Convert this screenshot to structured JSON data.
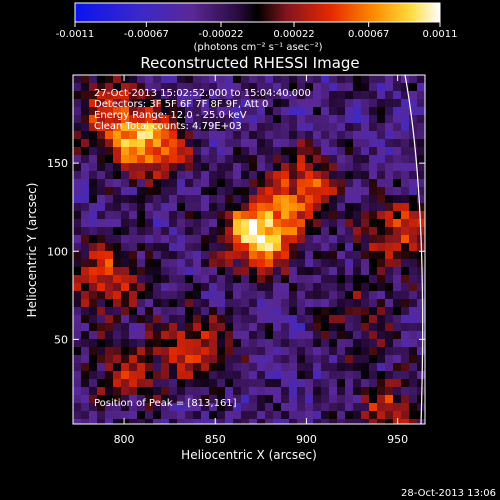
{
  "colors": {
    "background": "#000000",
    "text": "#ffffff",
    "colormap_low": "#0000ff",
    "colormap_mid": "#000000",
    "colormap_high": "#ffffff",
    "limb": "#ffffff"
  },
  "colorbar": {
    "tick_labels": [
      "-0.0011",
      "-0.00067",
      "-0.00022",
      "0.00022",
      "0.00067",
      "0.0011"
    ],
    "units_label": "(photons cm⁻² s⁻¹ asec⁻²)",
    "range": [
      -0.0011,
      0.0011
    ]
  },
  "chart_data": {
    "type": "heatmap",
    "title": "Reconstructed RHESSI Image",
    "xlabel": "Heliocentric X (arcsec)",
    "ylabel": "Heliocentric Y (arcsec)",
    "xlim": [
      772,
      965
    ],
    "ylim": [
      2,
      200
    ],
    "x_ticks": [
      800,
      850,
      900,
      950
    ],
    "y_ticks": [
      50,
      100,
      150
    ],
    "annotations": [
      "27-Oct-2013 15:02:52.000 to 15:04:40.000",
      "Detectors: 3F 5F 6F 7F 8F 9F, Att 0",
      "Energy Range: 12.0 - 25.0 keV",
      "Clean   Total counts: 4.79E+03"
    ],
    "peak_label": "Position of Peak = [813,161]",
    "peak": [
      813,
      161
    ],
    "sources": [
      {
        "x": 875,
        "y": 110,
        "amplitude": 1.0
      },
      {
        "x": 813,
        "y": 161,
        "amplitude": 0.8
      },
      {
        "x": 898,
        "y": 138,
        "amplitude": 0.55
      },
      {
        "x": 790,
        "y": 85,
        "amplitude": 0.55
      },
      {
        "x": 838,
        "y": 45,
        "amplitude": 0.5
      },
      {
        "x": 950,
        "y": 110,
        "amplitude": 0.55
      },
      {
        "x": 945,
        "y": 8,
        "amplitude": 0.45
      },
      {
        "x": 790,
        "y": 180,
        "amplitude": 0.45
      },
      {
        "x": 930,
        "y": 60,
        "amplitude": 0.3
      },
      {
        "x": 800,
        "y": 30,
        "amplitude": 0.35
      }
    ],
    "limb": "solar limb arc near x = 955"
  },
  "footer": {
    "date_stamp": "28-Oct-2013 13:06"
  }
}
